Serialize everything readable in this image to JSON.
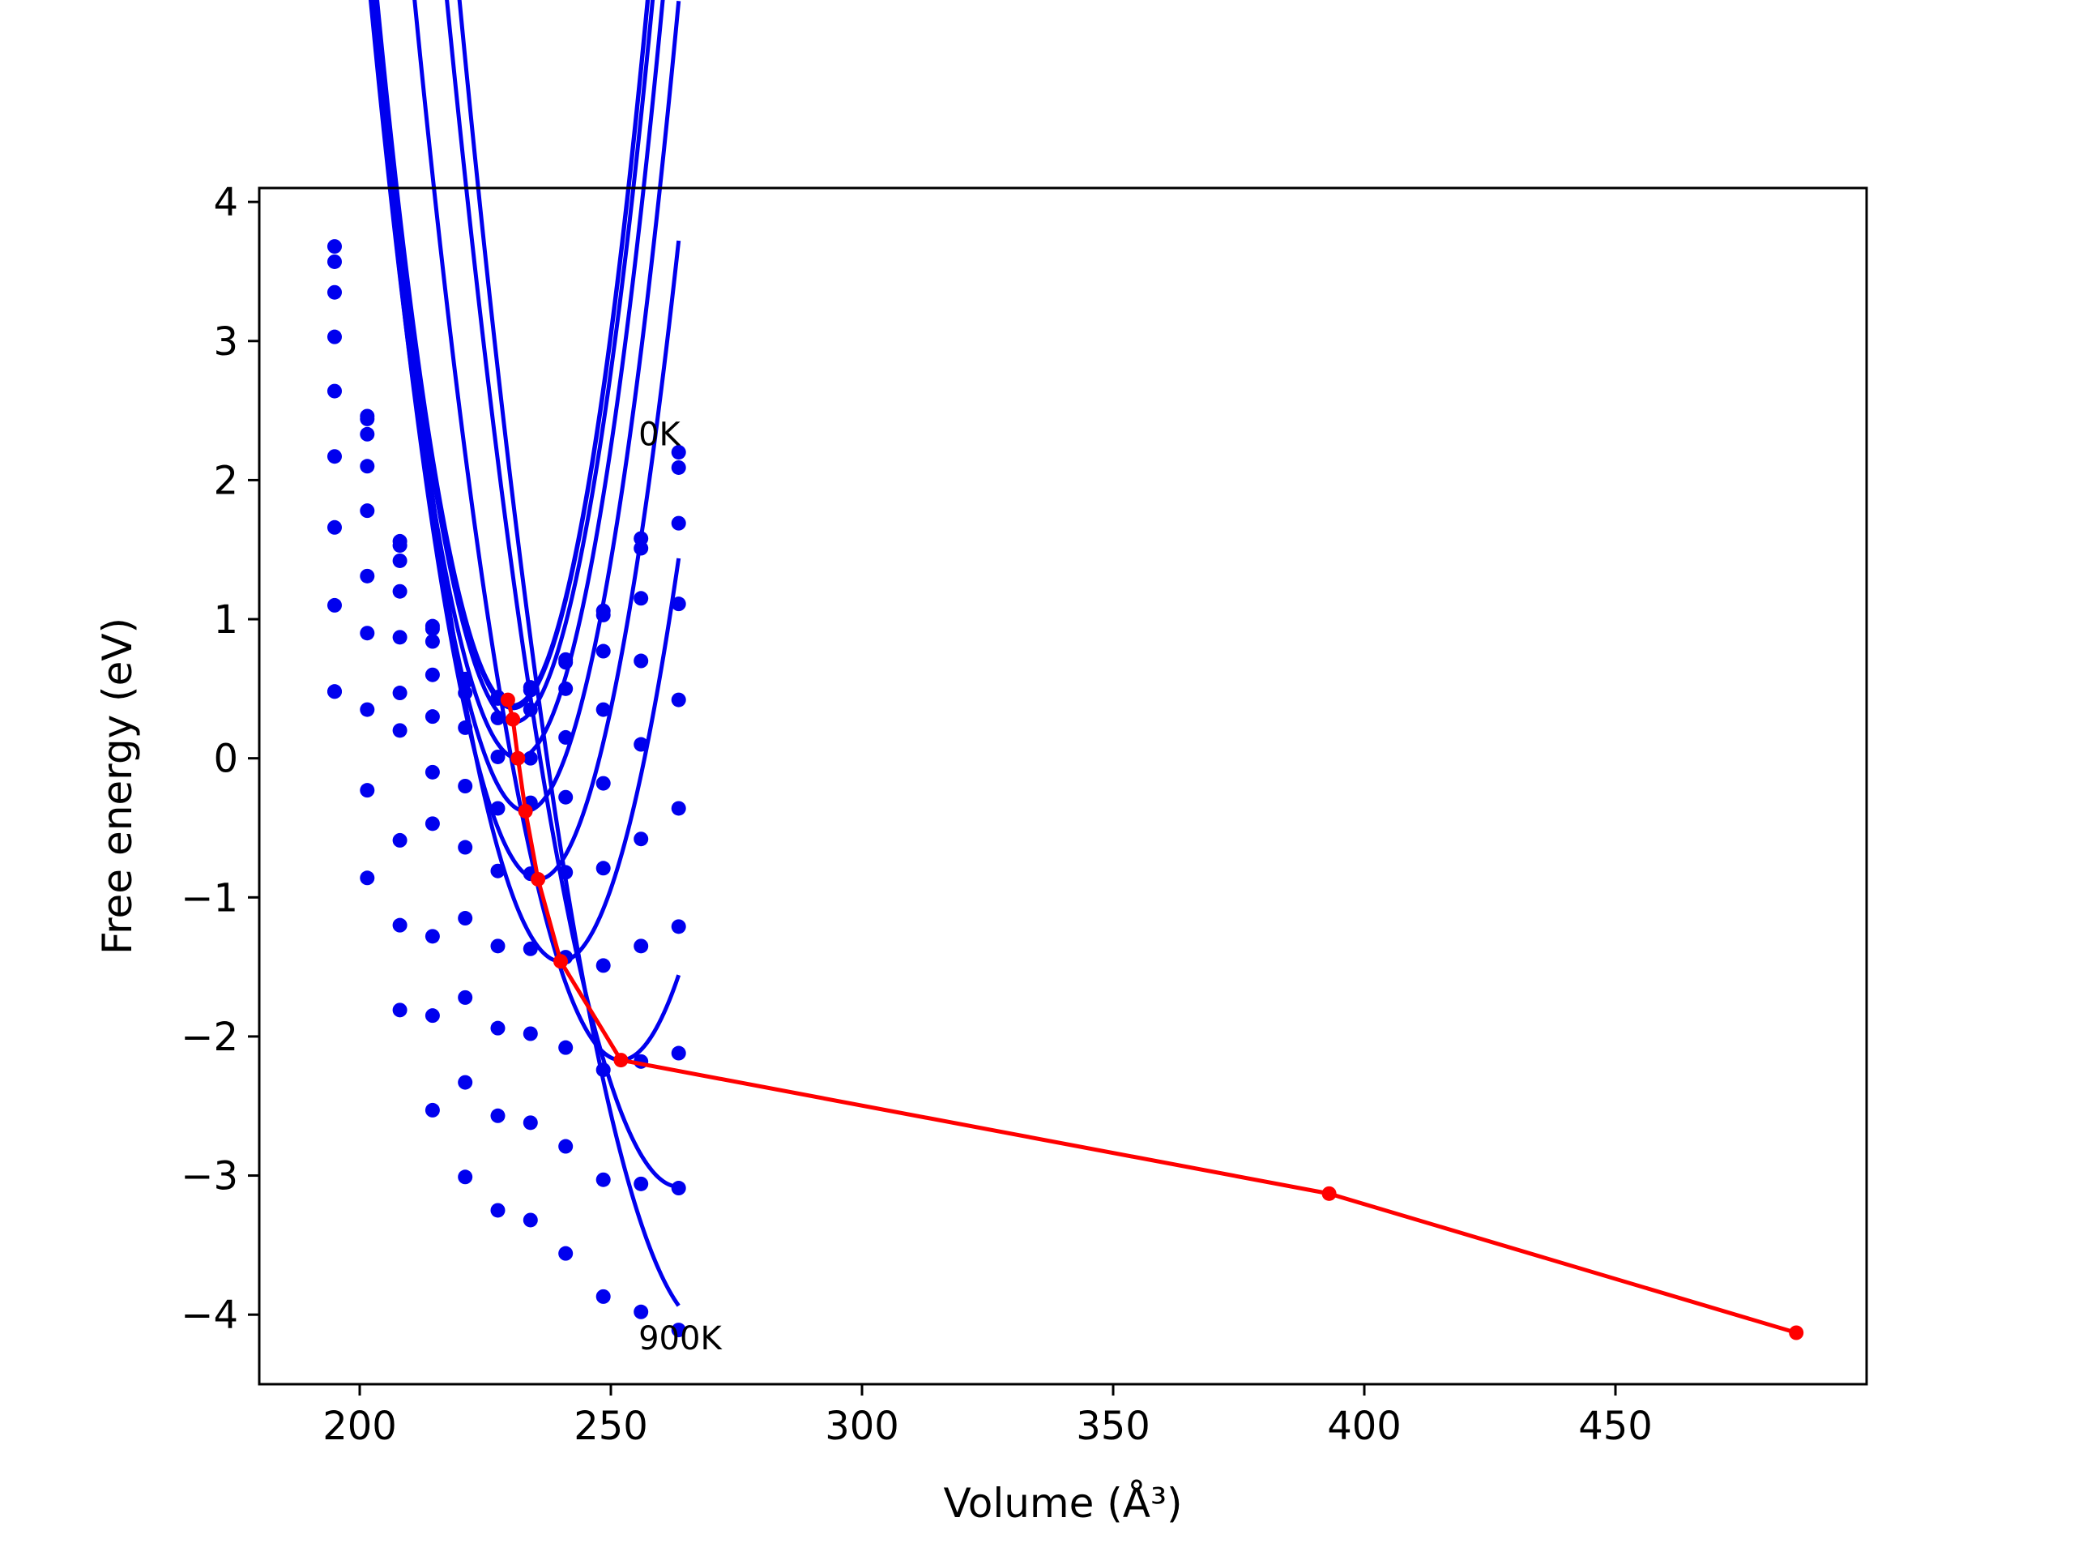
{
  "chart_data": {
    "type": "line",
    "xlabel": "Volume (Å³)",
    "ylabel": "Free energy (eV)",
    "xlim": [
      180,
      500
    ],
    "ylim": [
      -4.5,
      4.1
    ],
    "xticks": [
      {
        "value": 200,
        "label": "200"
      },
      {
        "value": 250,
        "label": "250"
      },
      {
        "value": 300,
        "label": "300"
      },
      {
        "value": 350,
        "label": "350"
      },
      {
        "value": 400,
        "label": "400"
      },
      {
        "value": 450,
        "label": "450"
      }
    ],
    "yticks": [
      {
        "value": 4,
        "label": "4"
      },
      {
        "value": 3,
        "label": "3"
      },
      {
        "value": 2,
        "label": "2"
      },
      {
        "value": 1,
        "label": "1"
      },
      {
        "value": 0,
        "label": "0"
      },
      {
        "value": -1,
        "label": "−1"
      },
      {
        "value": -2,
        "label": "−2"
      },
      {
        "value": -3,
        "label": "−3"
      },
      {
        "value": -4,
        "label": "−4"
      }
    ],
    "grid": false,
    "legend": "none",
    "annotations": [
      {
        "text": "0K",
        "x": 255.5,
        "y": 2.25
      },
      {
        "text": "900K",
        "x": 255.5,
        "y": -4.25
      }
    ],
    "volume_points": [
      195,
      201.5,
      208,
      214.5,
      221,
      227.5,
      234,
      241,
      248.5,
      256,
      263.5
    ],
    "isotherms": [
      {
        "color": "#0000ee",
        "fit": {
          "vmin": 195,
          "vmax": 263.5,
          "a": 0.007,
          "v0": 230.5,
          "f0": 0.38,
          "c": 0.02
        },
        "points": [
          3.68,
          2.46,
          1.56,
          0.95,
          0.57,
          0.44,
          0.51,
          0.71,
          1.06,
          1.58,
          2.2
        ]
      },
      {
        "color": "#0000ee",
        "fit": {
          "vmin": 195,
          "vmax": 263.5,
          "a": 0.007,
          "v0": 230.5,
          "f0": 0.36,
          "c": 0.02
        },
        "points": [
          3.57,
          2.44,
          1.53,
          0.93,
          0.55,
          0.43,
          0.49,
          0.69,
          1.03,
          1.51,
          2.09
        ]
      },
      {
        "color": "#0000ee",
        "fit": {
          "vmin": 195,
          "vmax": 263.5,
          "a": 0.0068,
          "v0": 230.8,
          "f0": 0.26,
          "c": 0.02
        },
        "points": [
          3.35,
          2.33,
          1.42,
          0.84,
          0.47,
          0.29,
          0.35,
          0.5,
          0.77,
          1.15,
          1.69
        ]
      },
      {
        "color": "#0000ee",
        "fit": {
          "vmin": 195,
          "vmax": 263.5,
          "a": 0.0065,
          "v0": 231.5,
          "f0": 0.0,
          "c": 0.02
        },
        "points": [
          3.03,
          2.1,
          1.2,
          0.6,
          0.22,
          0.01,
          0.0,
          0.15,
          0.35,
          0.7,
          1.11
        ]
      },
      {
        "color": "#0000ee",
        "fit": {
          "vmin": 195,
          "vmax": 263.5,
          "a": 0.0062,
          "v0": 233,
          "f0": -0.38,
          "c": 0.02
        },
        "points": [
          2.64,
          1.78,
          0.87,
          0.3,
          -0.2,
          -0.36,
          -0.32,
          -0.28,
          -0.18,
          0.1,
          0.42
        ]
      },
      {
        "color": "#0000ee",
        "fit": {
          "vmin": 195,
          "vmax": 263.5,
          "a": 0.0058,
          "v0": 235.5,
          "f0": -0.87,
          "c": 0.02
        },
        "points": [
          2.17,
          1.31,
          0.47,
          -0.1,
          -0.64,
          -0.81,
          -0.83,
          -0.82,
          -0.79,
          -0.58,
          -0.36
        ]
      },
      {
        "color": "#0000ee",
        "fit": {
          "vmin": 195,
          "vmax": 263.5,
          "a": 0.0052,
          "v0": 240,
          "f0": -1.46,
          "c": 0.02
        },
        "points": [
          1.66,
          0.9,
          0.2,
          -0.47,
          -1.15,
          -1.35,
          -1.37,
          -1.43,
          -1.49,
          -1.35,
          -1.21
        ]
      },
      {
        "color": "#0000ee",
        "fit": {
          "vmin": 195,
          "vmax": 263.5,
          "a": 0.0046,
          "v0": 252,
          "f0": -2.17,
          "c": 0.02
        },
        "points": [
          1.1,
          0.35,
          -0.59,
          -1.28,
          -1.72,
          -1.94,
          -1.98,
          -2.08,
          -2.24,
          -2.18,
          -2.12
        ]
      },
      {
        "color": "#0000ee",
        "fit": {
          "vmin": 195,
          "vmax": 263.5,
          "a": 0.0041,
          "v0": 263.5,
          "f0": -3.08,
          "c": 0.02
        },
        "points": [
          0.48,
          -0.23,
          -1.2,
          -1.85,
          -2.33,
          -2.57,
          -2.62,
          -2.79,
          -3.03,
          -3.06,
          -3.09
        ]
      },
      {
        "color": "#0000ee",
        "fit": {
          "vmin": 195,
          "vmax": 263.5,
          "a": 0.0039,
          "v0": 270,
          "f0": -4.1,
          "c": 0.02
        },
        "points": [
          0.48,
          -0.86,
          -1.81,
          -2.53,
          -3.01,
          -3.25,
          -3.32,
          -3.56,
          -3.87,
          -3.98,
          -4.11
        ]
      }
    ],
    "min_path": {
      "name": "",
      "color": "#ff0000",
      "x": [
        229.5,
        230.5,
        231.5,
        233,
        235.5,
        240,
        252,
        393,
        486
      ],
      "y": [
        0.42,
        0.28,
        0.0,
        -0.38,
        -0.87,
        -1.46,
        -2.17,
        -3.13,
        -4.13
      ]
    }
  }
}
